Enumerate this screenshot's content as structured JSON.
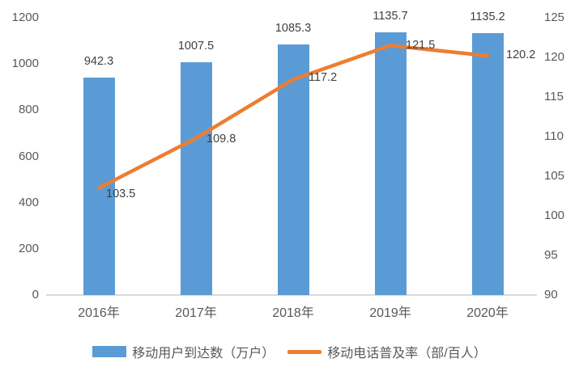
{
  "chart_data": {
    "type": "combo",
    "title": "",
    "categories": [
      "2016年",
      "2017年",
      "2018年",
      "2019年",
      "2020年"
    ],
    "series": [
      {
        "name": "移动用户到达数（万户）",
        "type": "bar",
        "axis": "left",
        "color": "#5B9BD5",
        "values": [
          942.3,
          1007.5,
          1085.3,
          1135.7,
          1135.2
        ]
      },
      {
        "name": "移动电话普及率（部/百人）",
        "type": "line",
        "axis": "right",
        "color": "#ED7D31",
        "values": [
          103.5,
          109.8,
          117.2,
          121.5,
          120.2
        ]
      }
    ],
    "left_axis": {
      "min": 0,
      "max": 1200,
      "ticks": [
        1200,
        1000,
        800,
        600,
        400,
        200,
        0
      ]
    },
    "right_axis": {
      "min": 90,
      "max": 125,
      "ticks": [
        125,
        120,
        115,
        110,
        105,
        100,
        95,
        90
      ]
    },
    "grid": false,
    "data_labels": true,
    "legend_position": "bottom",
    "colors": {
      "background": "#FFFFFF",
      "axis_text": "#595959",
      "data_label_text": "#404040",
      "axis_line": "#D9D9D9"
    }
  }
}
